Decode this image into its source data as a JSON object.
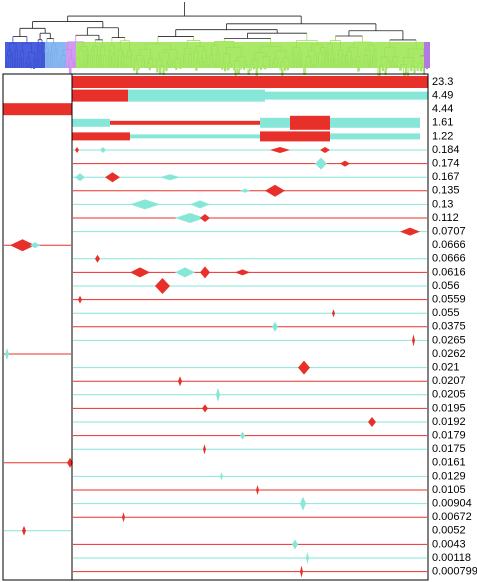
{
  "tracks": [
    23.3,
    4.49,
    4.44,
    1.61,
    1.22,
    0.184,
    0.174,
    0.167,
    0.135,
    0.13,
    0.112,
    0.0707,
    0.0666,
    0.0666,
    0.0616,
    0.056,
    0.0559,
    0.055,
    0.0375,
    0.0265,
    0.0262,
    0.021,
    0.0207,
    0.0205,
    0.0195,
    0.0192,
    0.0179,
    0.0175,
    0.0161,
    0.0129,
    0.0105,
    0.00904,
    0.00672,
    0.0052,
    0.0043,
    0.00118,
    0.000799
  ]
}
